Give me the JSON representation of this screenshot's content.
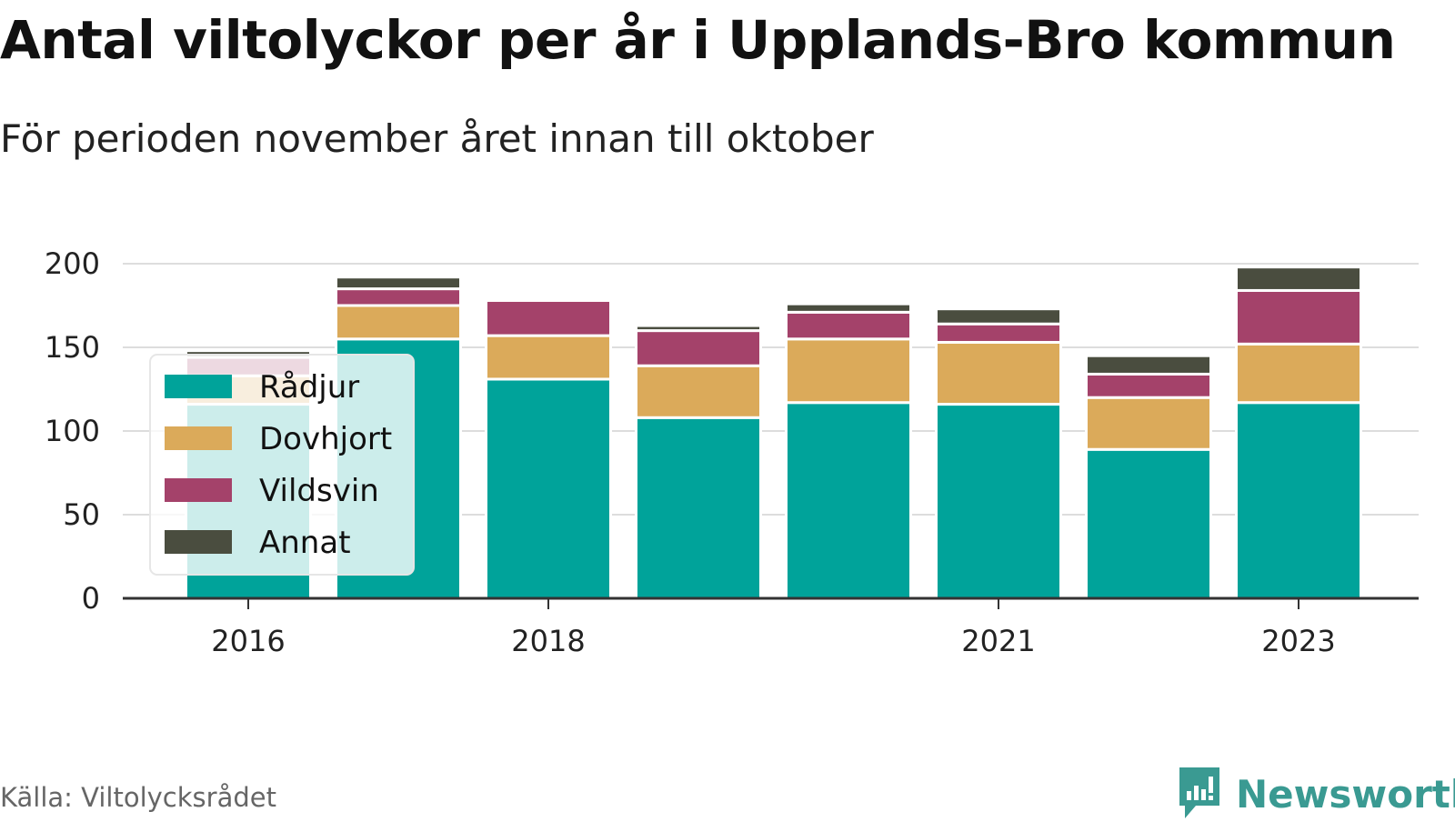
{
  "title": "Antal viltolyckor per år i Upplands-Bro kommun",
  "subtitle": "För perioden november året innan till oktober",
  "source": "Källa: Viltolycksrådet",
  "brand": "Newsworthy",
  "colors": {
    "Rådjur": "#00a39a",
    "Dovhjort": "#dbaa5a",
    "Vildsvin": "#a4426a",
    "Annat": "#4a4d3f",
    "grid": "#dddddd",
    "axis": "#333333",
    "brand": "#3a9a92"
  },
  "chart_data": {
    "type": "bar",
    "stacked": true,
    "categories": [
      "2016",
      "2017",
      "2018",
      "2019",
      "2020",
      "2021",
      "2022",
      "2023"
    ],
    "x_tick_labels": [
      "2016",
      "2018",
      "2021",
      "2023"
    ],
    "y_ticks": [
      "0",
      "50",
      "100",
      "150",
      "200"
    ],
    "ylim": [
      0,
      200
    ],
    "grid": true,
    "legend_position": "top-left",
    "series": [
      {
        "name": "Rådjur",
        "values": [
          116,
          155,
          131,
          108,
          117,
          116,
          89,
          117
        ]
      },
      {
        "name": "Dovhjort",
        "values": [
          17,
          20,
          26,
          31,
          38,
          37,
          31,
          35
        ]
      },
      {
        "name": "Vildsvin",
        "values": [
          11,
          10,
          21,
          21,
          16,
          11,
          14,
          32
        ]
      },
      {
        "name": "Annat",
        "values": [
          4,
          7,
          0,
          3,
          5,
          9,
          11,
          14
        ]
      }
    ]
  }
}
